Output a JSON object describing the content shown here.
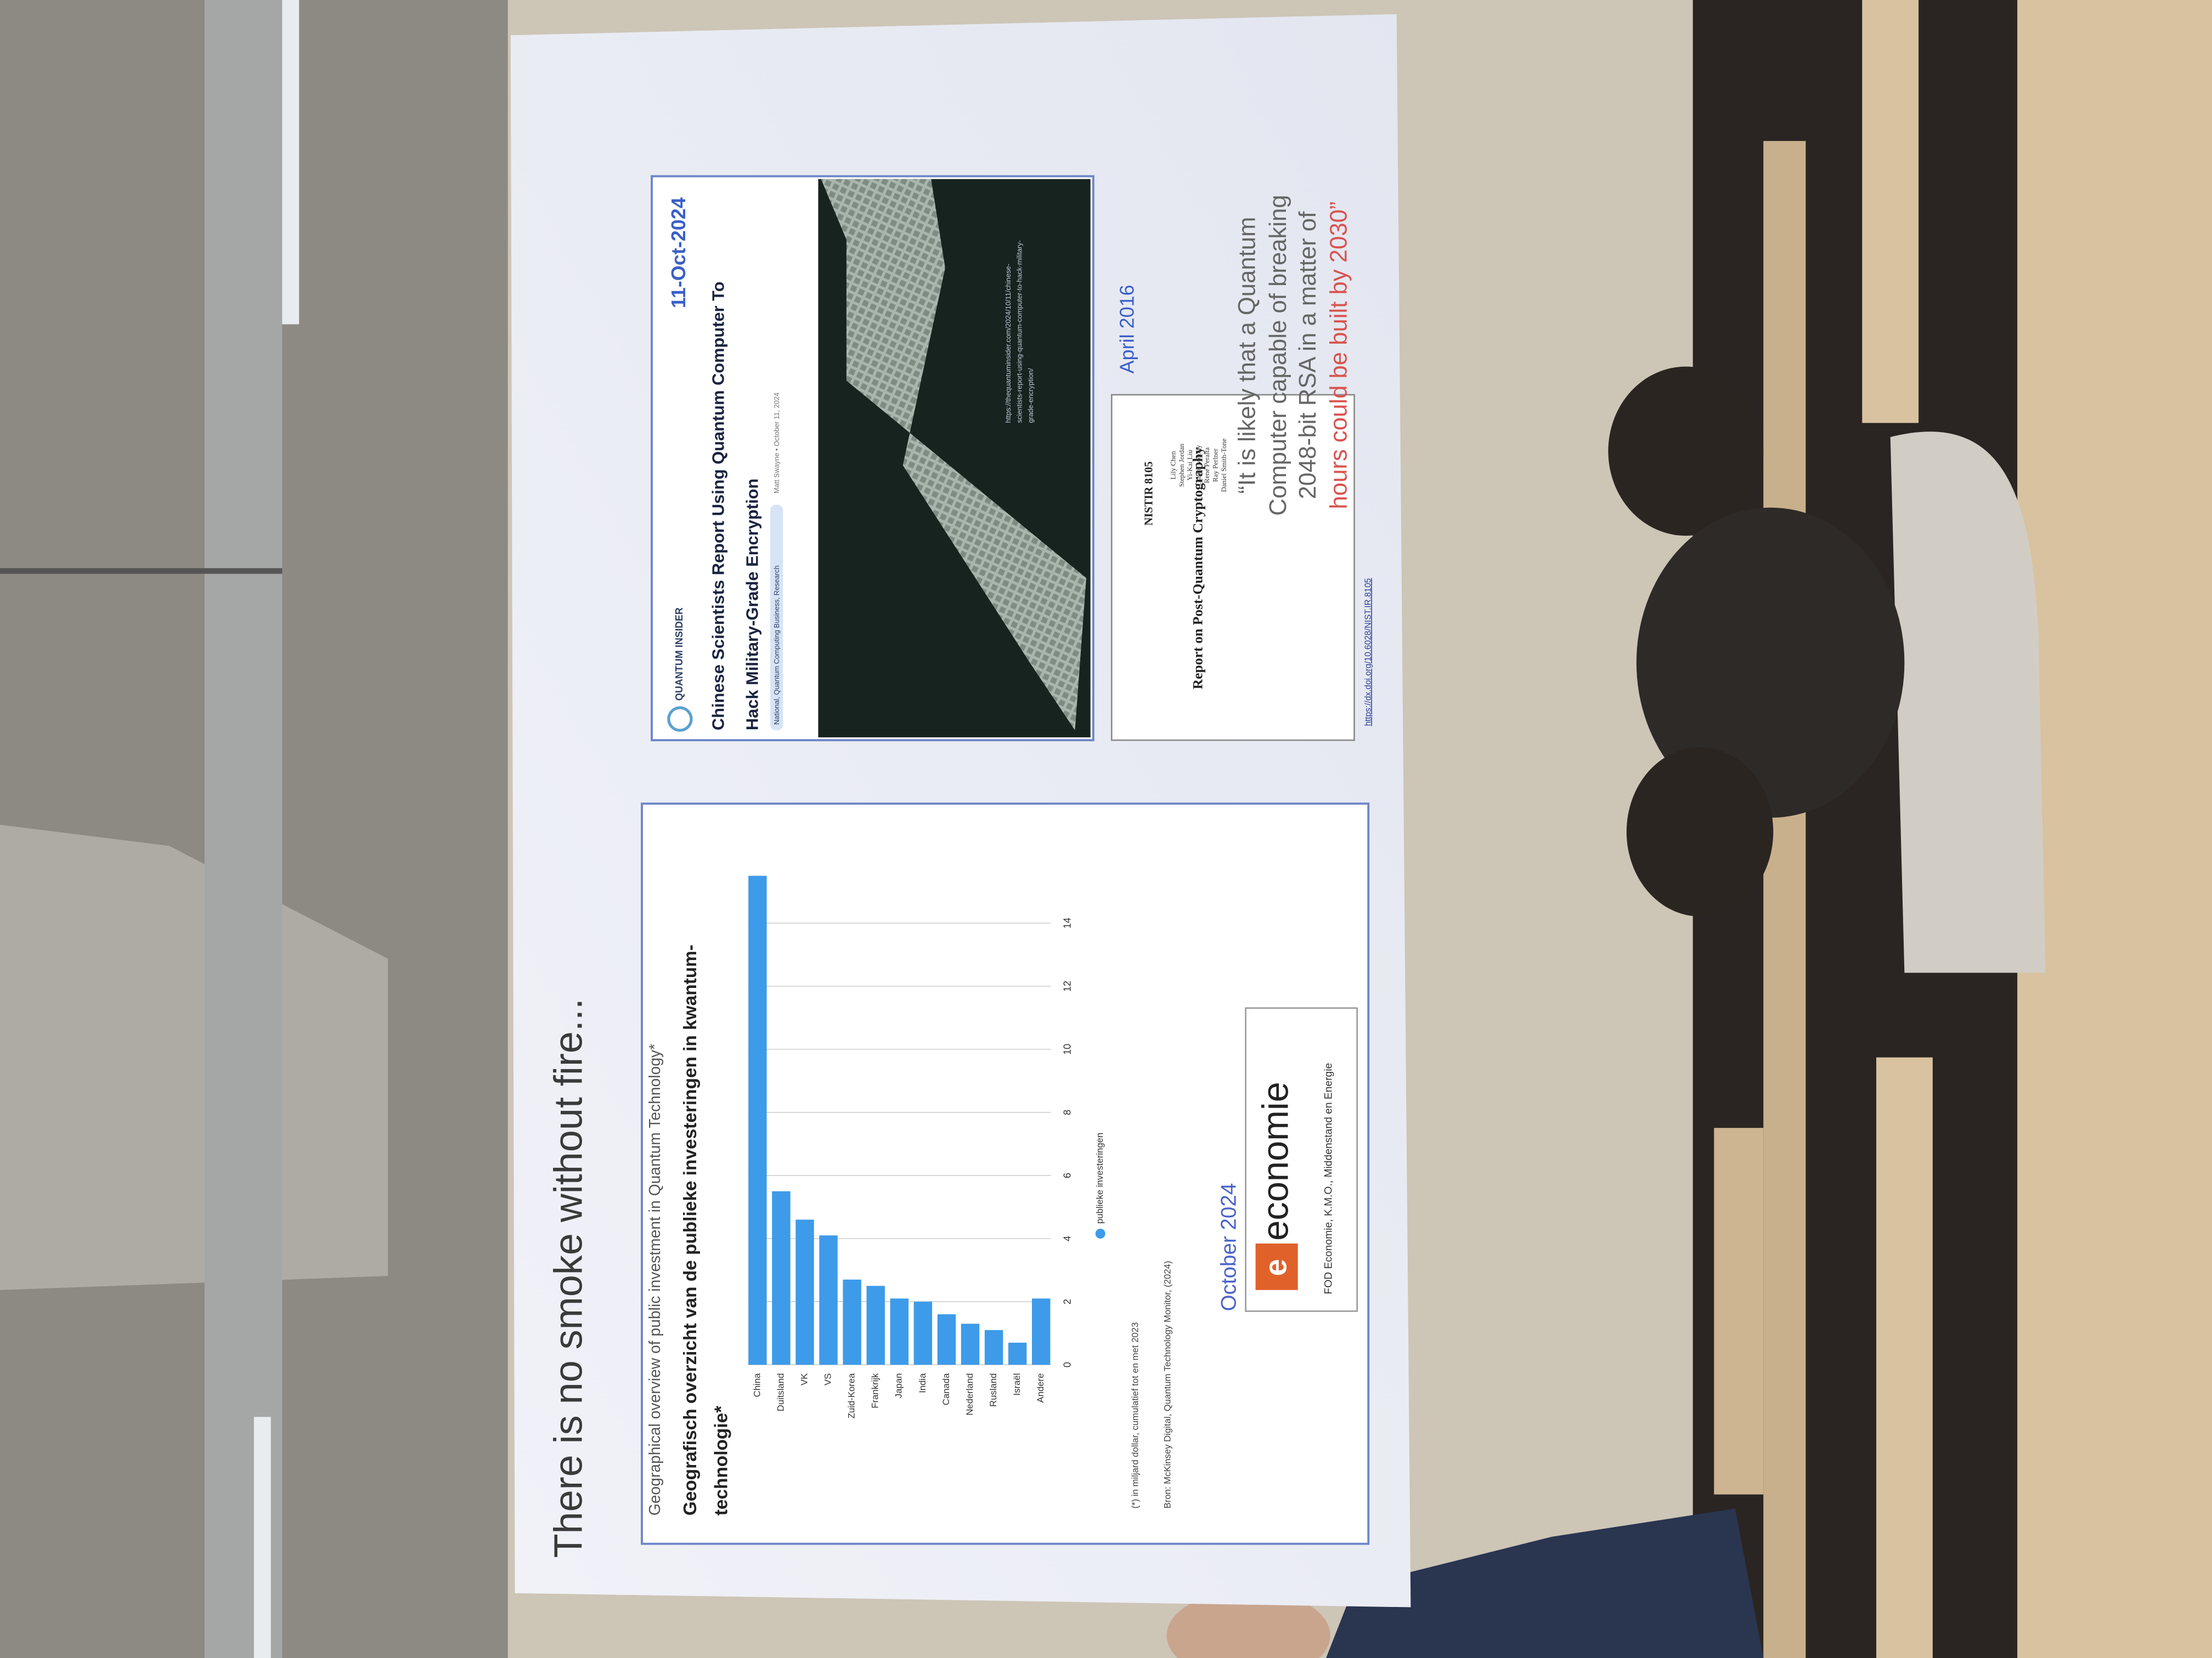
{
  "slide": {
    "title": "There is no smoke without fire...",
    "chart_date": "October 2024",
    "logo_text": "economie",
    "logo_caption": "FOD Economie, K.M.O., Middenstand en Energie",
    "article": {
      "publisher": "QUANTUM INSIDER",
      "date": "11-Oct-2024",
      "headline": [
        "Chinese Scientists Report Using Quantum Computer To",
        "Hack Military-Grade Encryption"
      ],
      "tags": "National, Quantum Computing Business, Research",
      "byline": "Matt Swayne • October 11, 2024",
      "url": [
        "https://thequantuminsider.com/2024/10/11/chinese-",
        "scientists-report-using-quantum-computer-to-hack-military-",
        "grade-encryption/"
      ]
    },
    "report": {
      "date": "April 2016",
      "number": "NISTIR 8105",
      "title": "Report on Post-Quantum Cryptography",
      "authors": [
        "Lily Chen",
        "Stephen Jordan",
        "Yi-Kai Liu",
        "Dustin Moody",
        "Rene Peralta",
        "Ray Perlner",
        "Daniel Smith-Tone"
      ],
      "url": "https://dx.doi.org/10.6028/NIST.IR.8105"
    },
    "quote": [
      "“It is likely that a Quantum",
      "Computer capable of breaking",
      "2048-bit RSA in a matter of",
      "hours could be built by 2030”"
    ]
  },
  "chart_data": {
    "type": "bar",
    "orientation": "horizontal",
    "subtitle": "Geographical overview of public investment in Quantum Technology*",
    "title": [
      "Geografisch overzicht van de publieke investeringen in kwantum-",
      "technologie*"
    ],
    "categories": [
      "China",
      "Duitsland",
      "VK",
      "VS",
      "Zuid-Korea",
      "Frankrijk",
      "Japan",
      "India",
      "Canada",
      "Nederland",
      "Rusland",
      "Israël",
      "Andere"
    ],
    "series": [
      {
        "name": "publieke investeringen",
        "color": "#3d9be9",
        "values": [
          15.5,
          5.5,
          4.6,
          4.1,
          2.7,
          2.5,
          2.1,
          2.0,
          1.6,
          1.3,
          1.1,
          0.7,
          2.1
        ]
      }
    ],
    "xlim": [
      0,
      16
    ],
    "xticks": [
      0,
      2,
      4,
      6,
      8,
      10,
      12,
      14
    ],
    "grid": true,
    "note": "(*) in miljard dollar, cumulatief tot en met 2023",
    "source": "Bron: McKinsey Digital, Quantum Technology Monitor, (2024)"
  }
}
